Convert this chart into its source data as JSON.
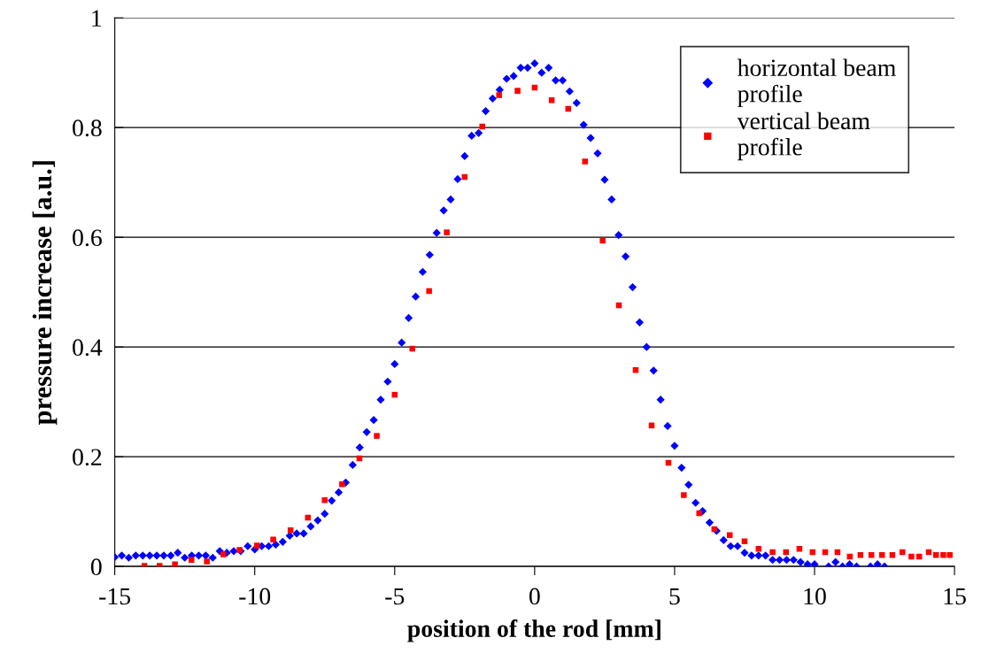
{
  "chart_data": {
    "type": "scatter",
    "xlabel": "position of the rod [mm]",
    "ylabel": "pressure increase [a.u.]",
    "xlim": [
      -15,
      15
    ],
    "xticks": [
      -15,
      -10,
      -5,
      0,
      5,
      10,
      15
    ],
    "ylim": [
      0,
      1
    ],
    "yticks": [
      0,
      0.2,
      0.4,
      0.6,
      0.8,
      1
    ],
    "grid": "y",
    "legend": "top right",
    "series": [
      {
        "name": "horizontal beam profile",
        "color": "#0000ff",
        "marker": "diamond",
        "x": [
          -15.0,
          -14.75,
          -14.5,
          -14.25,
          -14.0,
          -13.75,
          -13.5,
          -13.25,
          -13.0,
          -12.75,
          -12.5,
          -12.25,
          -12.0,
          -11.75,
          -11.5,
          -11.25,
          -11.0,
          -10.75,
          -10.5,
          -10.25,
          -10.0,
          -9.75,
          -9.5,
          -9.25,
          -9.0,
          -8.75,
          -8.5,
          -8.25,
          -8.0,
          -7.75,
          -7.5,
          -7.25,
          -7.0,
          -6.75,
          -6.5,
          -6.25,
          -6.0,
          -5.75,
          -5.5,
          -5.25,
          -5.0,
          -4.75,
          -4.5,
          -4.25,
          -4.0,
          -3.75,
          -3.5,
          -3.25,
          -3.0,
          -2.75,
          -2.5,
          -2.25,
          -2.0,
          -1.75,
          -1.5,
          -1.25,
          -1.0,
          -0.75,
          -0.5,
          -0.25,
          0.0,
          0.25,
          0.5,
          0.75,
          1.0,
          1.25,
          1.5,
          1.75,
          2.0,
          2.25,
          2.5,
          2.75,
          3.0,
          3.25,
          3.5,
          3.75,
          4.0,
          4.25,
          4.5,
          4.75,
          5.0,
          5.25,
          5.5,
          5.75,
          6.0,
          6.25,
          6.5,
          6.75,
          7.0,
          7.25,
          7.5,
          7.75,
          8.0,
          8.25,
          8.5,
          8.75,
          9.0,
          9.25,
          9.5,
          9.75,
          10.0,
          10.5,
          10.75,
          11.0,
          11.25,
          11.5,
          12.0,
          12.25,
          12.5
        ],
        "values": [
          0.017,
          0.02,
          0.016,
          0.02,
          0.02,
          0.02,
          0.02,
          0.02,
          0.02,
          0.025,
          0.016,
          0.02,
          0.02,
          0.02,
          0.016,
          0.028,
          0.025,
          0.028,
          0.028,
          0.037,
          0.031,
          0.037,
          0.037,
          0.04,
          0.045,
          0.056,
          0.06,
          0.06,
          0.073,
          0.084,
          0.096,
          0.12,
          0.135,
          0.153,
          0.185,
          0.217,
          0.245,
          0.267,
          0.304,
          0.337,
          0.369,
          0.408,
          0.453,
          0.492,
          0.537,
          0.568,
          0.608,
          0.649,
          0.669,
          0.706,
          0.748,
          0.785,
          0.79,
          0.83,
          0.853,
          0.869,
          0.889,
          0.894,
          0.909,
          0.909,
          0.917,
          0.9,
          0.909,
          0.886,
          0.886,
          0.866,
          0.845,
          0.805,
          0.781,
          0.753,
          0.705,
          0.669,
          0.604,
          0.565,
          0.509,
          0.445,
          0.4,
          0.357,
          0.304,
          0.256,
          0.22,
          0.18,
          0.149,
          0.116,
          0.101,
          0.08,
          0.065,
          0.048,
          0.037,
          0.037,
          0.025,
          0.02,
          0.02,
          0.02,
          0.012,
          0.012,
          0.012,
          0.012,
          0.008,
          0.004,
          0.004,
          0.0,
          0.008,
          0.0,
          0.004,
          0.0,
          0.0,
          0.004,
          0.0
        ]
      },
      {
        "name": "vertical beam profile",
        "color": "#ff0000",
        "marker": "square",
        "x": [
          -13.94,
          -13.4,
          -12.85,
          -12.26,
          -11.71,
          -11.12,
          -10.54,
          -9.92,
          -9.34,
          -8.72,
          -8.1,
          -7.5,
          -6.88,
          -6.26,
          -5.64,
          -5.0,
          -4.37,
          -3.77,
          -3.14,
          -2.5,
          -1.87,
          -1.27,
          -0.61,
          0.0,
          0.61,
          1.2,
          1.8,
          2.43,
          3.01,
          3.61,
          4.18,
          4.78,
          5.33,
          5.88,
          6.42,
          6.97,
          7.5,
          8.0,
          8.5,
          8.98,
          9.46,
          9.93,
          10.38,
          10.82,
          11.26,
          11.64,
          12.03,
          12.41,
          12.78,
          13.14,
          13.46,
          13.74,
          14.08,
          14.34,
          14.6,
          14.83
        ],
        "values": [
          0.001,
          0.001,
          0.004,
          0.012,
          0.009,
          0.022,
          0.03,
          0.038,
          0.049,
          0.066,
          0.089,
          0.121,
          0.15,
          0.197,
          0.238,
          0.313,
          0.397,
          0.502,
          0.609,
          0.71,
          0.802,
          0.859,
          0.867,
          0.873,
          0.85,
          0.834,
          0.738,
          0.594,
          0.476,
          0.358,
          0.257,
          0.189,
          0.13,
          0.097,
          0.068,
          0.057,
          0.046,
          0.032,
          0.026,
          0.026,
          0.032,
          0.026,
          0.026,
          0.026,
          0.018,
          0.021,
          0.021,
          0.021,
          0.021,
          0.026,
          0.018,
          0.018,
          0.026,
          0.021,
          0.021,
          0.021
        ]
      }
    ]
  }
}
